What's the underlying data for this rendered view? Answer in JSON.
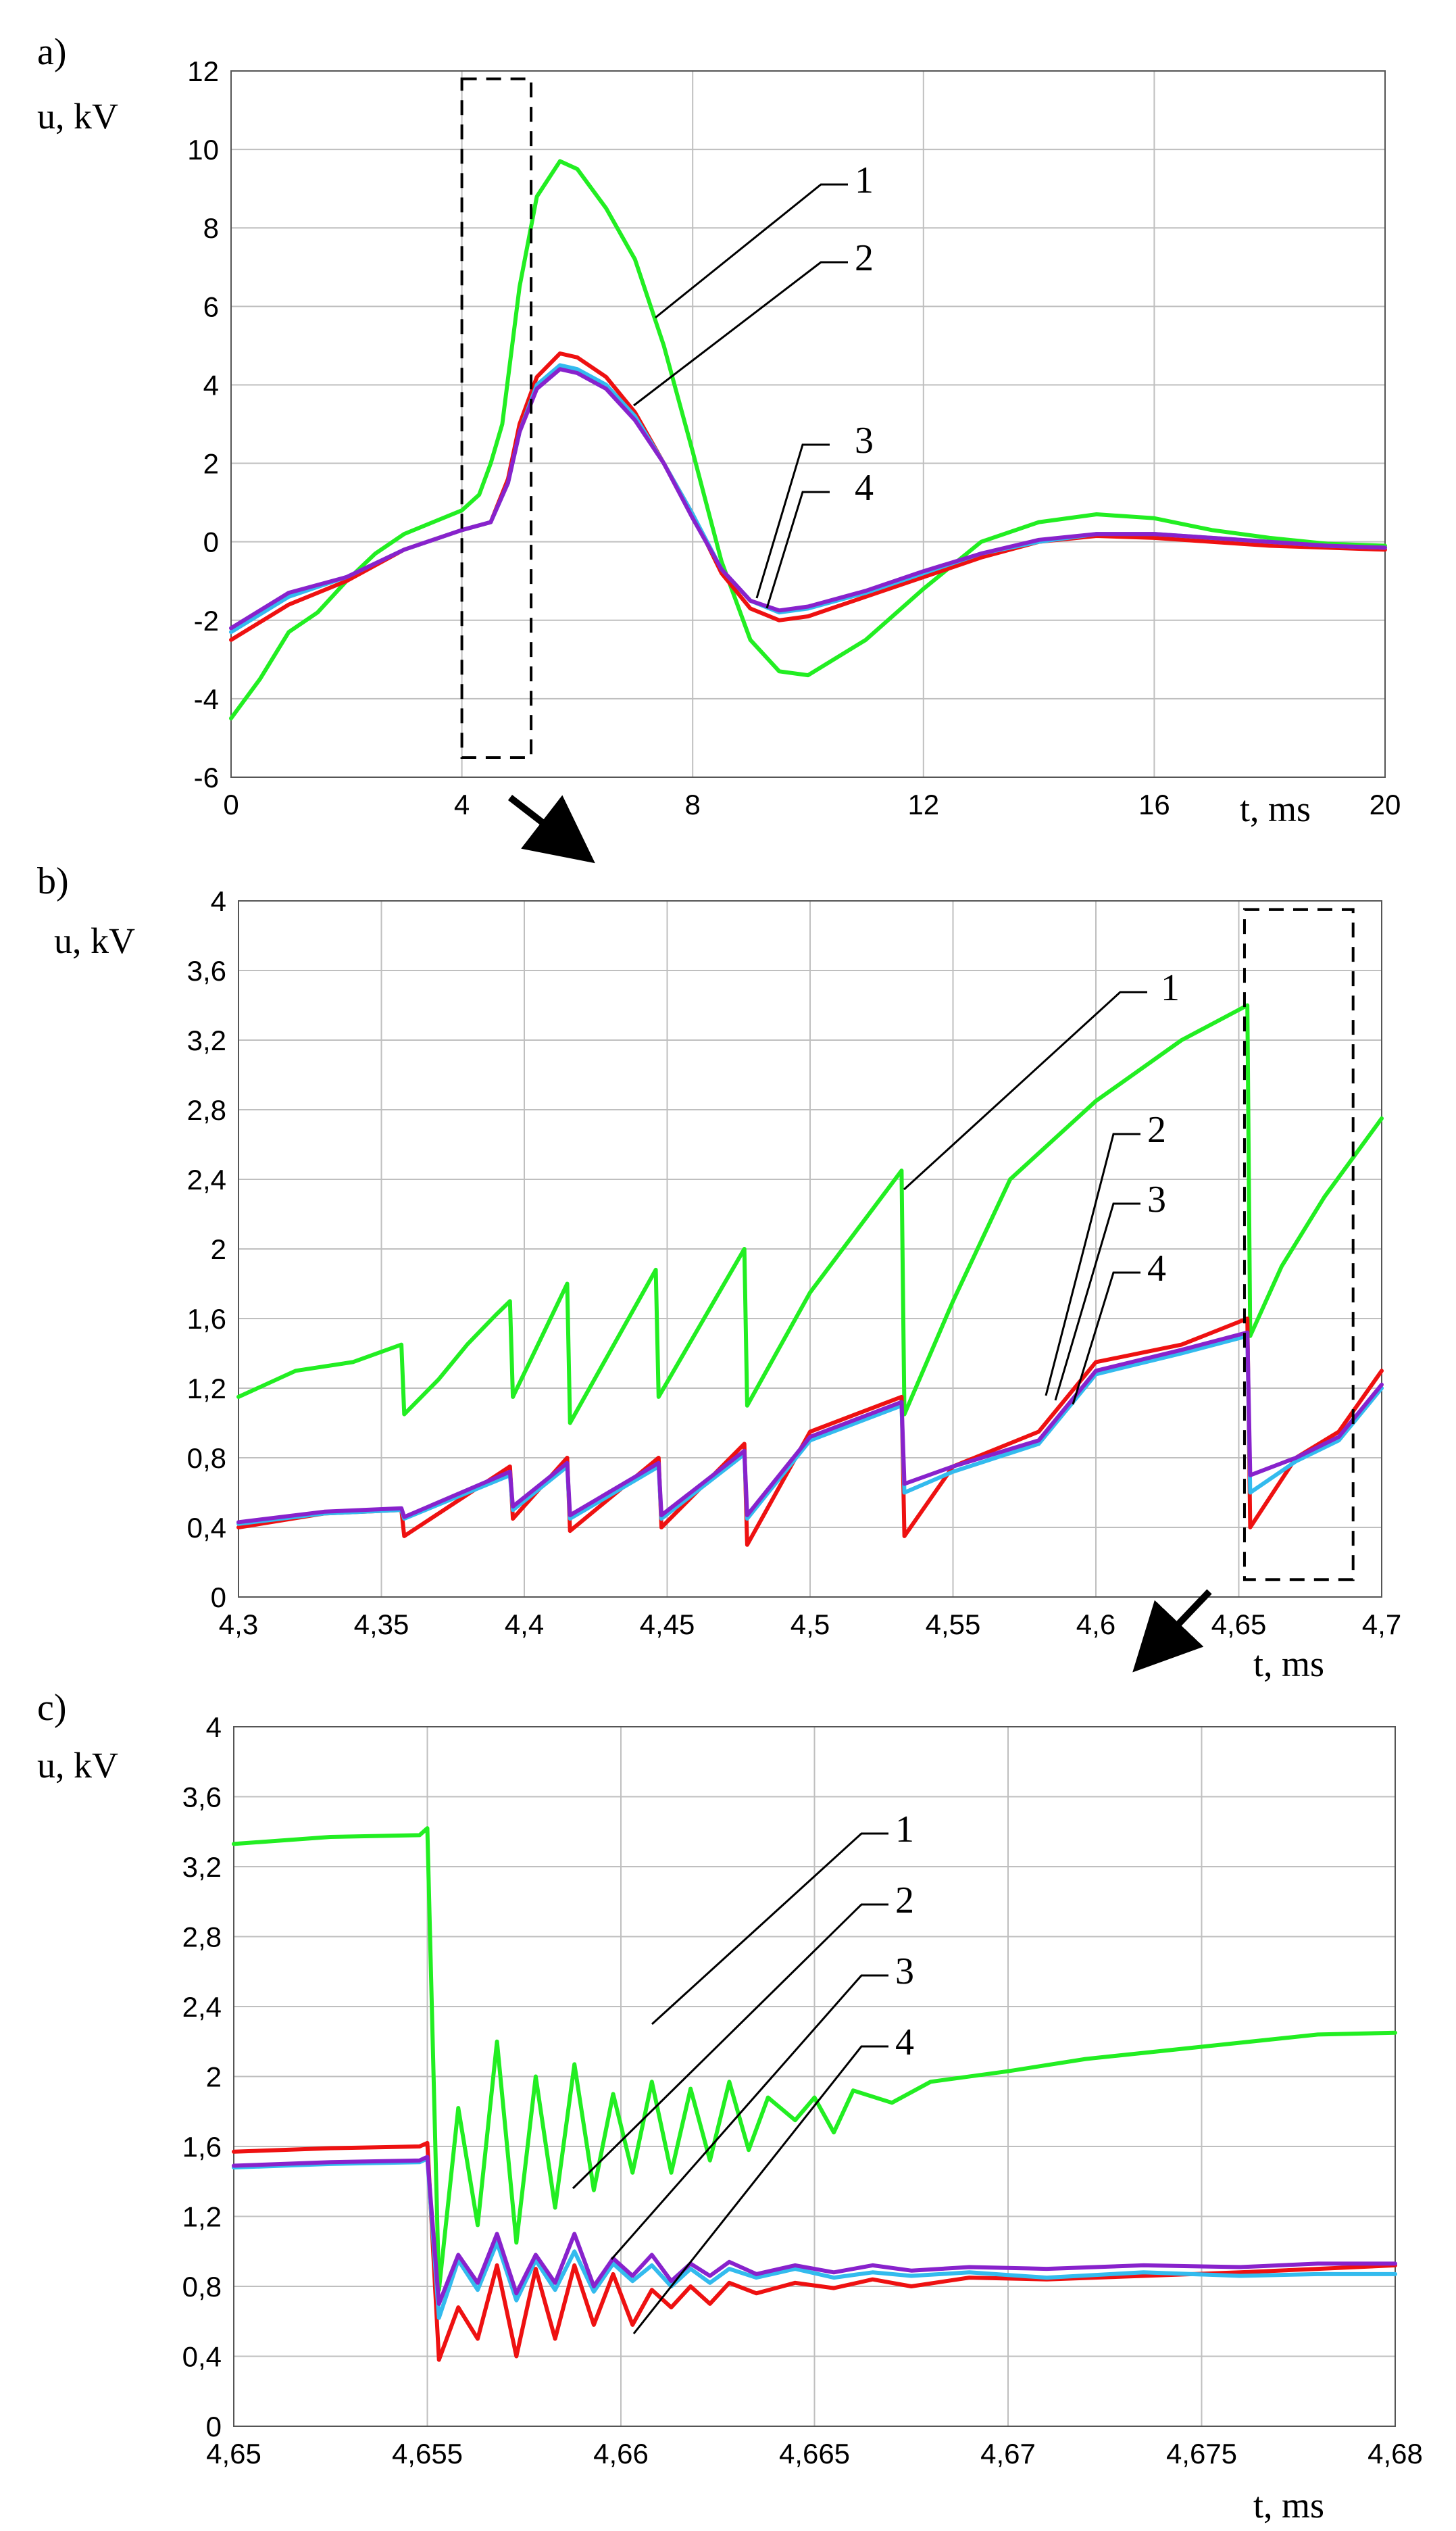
{
  "colors": {
    "curve_1": "#22ee22",
    "curve_2": "#ee1111",
    "curve_3": "#33bbee",
    "curve_4": "#8822cc",
    "grid": "#bfbfbf"
  },
  "chart_data": [
    {
      "panel": "a)",
      "type": "line",
      "ylabel": "u, kV",
      "xlabel": "t, ms",
      "xlim": [
        0,
        20
      ],
      "ylim": [
        -6,
        12
      ],
      "xticks": [
        "0",
        "4",
        "8",
        "12",
        "16",
        "20"
      ],
      "yticks": [
        "-6",
        "-4",
        "-2",
        "0",
        "2",
        "4",
        "6",
        "8",
        "10",
        "12"
      ],
      "curve_labels": [
        "1",
        "2",
        "3",
        "4"
      ],
      "zoom_box": {
        "x": [
          4,
          5.2
        ],
        "y": [
          -5.5,
          11.8
        ]
      },
      "series": [
        {
          "name": "1",
          "x": [
            0,
            0.5,
            1,
            1.5,
            2,
            2.5,
            3,
            3.5,
            4,
            4.3,
            4.5,
            4.7,
            5,
            5.3,
            5.7,
            6,
            6.5,
            7,
            7.5,
            8,
            8.5,
            9,
            9.5,
            10,
            11,
            12,
            13,
            14,
            15,
            16,
            17,
            18,
            19,
            20
          ],
          "y": [
            -4.5,
            -3.5,
            -2.3,
            -1.8,
            -1.0,
            -0.3,
            0.2,
            0.5,
            0.8,
            1.2,
            2.0,
            3.0,
            6.5,
            8.8,
            9.7,
            9.5,
            8.5,
            7.2,
            5.0,
            2.3,
            -0.5,
            -2.5,
            -3.3,
            -3.4,
            -2.5,
            -1.2,
            0.0,
            0.5,
            0.7,
            0.6,
            0.3,
            0.1,
            -0.05,
            -0.1
          ]
        },
        {
          "name": "2",
          "x": [
            0,
            1,
            2,
            3,
            4,
            4.5,
            4.8,
            5,
            5.3,
            5.7,
            6,
            6.5,
            7,
            7.5,
            8,
            8.5,
            9,
            9.5,
            10,
            11,
            12,
            13,
            14,
            15,
            16,
            17,
            18,
            19,
            20
          ],
          "y": [
            -2.5,
            -1.6,
            -1.0,
            -0.2,
            0.3,
            0.5,
            1.6,
            3.0,
            4.2,
            4.8,
            4.7,
            4.2,
            3.3,
            2.0,
            0.7,
            -0.8,
            -1.7,
            -2.0,
            -1.9,
            -1.4,
            -0.9,
            -0.4,
            0.0,
            0.15,
            0.1,
            0.0,
            -0.1,
            -0.15,
            -0.2
          ]
        },
        {
          "name": "3",
          "x": [
            0,
            1,
            2,
            3,
            4,
            4.5,
            4.8,
            5,
            5.3,
            5.7,
            6,
            6.5,
            7,
            7.5,
            8,
            8.5,
            9,
            9.5,
            10,
            11,
            12,
            13,
            14,
            15,
            16,
            17,
            18,
            19,
            20
          ],
          "y": [
            -2.3,
            -1.4,
            -0.9,
            -0.2,
            0.3,
            0.5,
            1.5,
            2.8,
            4.0,
            4.5,
            4.4,
            4.0,
            3.2,
            2.0,
            0.7,
            -0.7,
            -1.5,
            -1.8,
            -1.7,
            -1.3,
            -0.8,
            -0.3,
            0.0,
            0.2,
            0.2,
            0.1,
            0.0,
            -0.1,
            -0.15
          ]
        },
        {
          "name": "4",
          "x": [
            0,
            1,
            2,
            3,
            4,
            4.5,
            4.8,
            5,
            5.3,
            5.7,
            6,
            6.5,
            7,
            7.5,
            8,
            8.5,
            9,
            9.5,
            10,
            11,
            12,
            13,
            14,
            15,
            16,
            17,
            18,
            19,
            20
          ],
          "y": [
            -2.2,
            -1.3,
            -0.9,
            -0.2,
            0.3,
            0.5,
            1.5,
            2.8,
            3.9,
            4.4,
            4.3,
            3.9,
            3.1,
            2.0,
            0.6,
            -0.7,
            -1.5,
            -1.75,
            -1.65,
            -1.25,
            -0.75,
            -0.3,
            0.05,
            0.2,
            0.2,
            0.1,
            0.0,
            -0.1,
            -0.15
          ]
        }
      ]
    },
    {
      "panel": "b)",
      "type": "line",
      "ylabel": "u, kV",
      "xlabel": "t, ms",
      "xlim": [
        4.3,
        4.7
      ],
      "ylim": [
        0,
        4
      ],
      "xticks": [
        "4,3",
        "4,35",
        "4,4",
        "4,45",
        "4,5",
        "4,55",
        "4,6",
        "4,65",
        "4,7"
      ],
      "yticks": [
        "0",
        "0,4",
        "0,8",
        "1,2",
        "1,6",
        "2",
        "2,4",
        "2,8",
        "3,2",
        "3,6",
        "4"
      ],
      "curve_labels": [
        "1",
        "2",
        "3",
        "4"
      ],
      "zoom_box": {
        "x": [
          4.652,
          4.69
        ],
        "y": [
          0.1,
          3.95
        ]
      },
      "series": [
        {
          "name": "1",
          "x": [
            4.3,
            4.32,
            4.34,
            4.357,
            4.358,
            4.37,
            4.38,
            4.39,
            4.395,
            4.396,
            4.415,
            4.416,
            4.446,
            4.447,
            4.477,
            4.478,
            4.5,
            4.532,
            4.533,
            4.55,
            4.57,
            4.6,
            4.63,
            4.653,
            4.654,
            4.665,
            4.68,
            4.7
          ],
          "y": [
            1.15,
            1.3,
            1.35,
            1.45,
            1.05,
            1.25,
            1.45,
            1.62,
            1.7,
            1.15,
            1.8,
            1.0,
            1.88,
            1.15,
            2.0,
            1.1,
            1.75,
            2.45,
            1.05,
            1.7,
            2.4,
            2.85,
            3.2,
            3.4,
            1.5,
            1.9,
            2.3,
            2.75
          ]
        },
        {
          "name": "2",
          "x": [
            4.3,
            4.33,
            4.357,
            4.358,
            4.395,
            4.396,
            4.415,
            4.416,
            4.447,
            4.448,
            4.477,
            4.478,
            4.5,
            4.532,
            4.533,
            4.55,
            4.58,
            4.6,
            4.63,
            4.653,
            4.654,
            4.67,
            4.685,
            4.7
          ],
          "y": [
            0.4,
            0.48,
            0.5,
            0.35,
            0.75,
            0.45,
            0.8,
            0.38,
            0.8,
            0.4,
            0.88,
            0.3,
            0.95,
            1.15,
            0.35,
            0.75,
            0.95,
            1.35,
            1.45,
            1.6,
            0.4,
            0.8,
            0.95,
            1.3
          ]
        },
        {
          "name": "3",
          "x": [
            4.3,
            4.33,
            4.357,
            4.358,
            4.395,
            4.396,
            4.415,
            4.416,
            4.447,
            4.448,
            4.477,
            4.478,
            4.5,
            4.532,
            4.533,
            4.55,
            4.58,
            4.6,
            4.63,
            4.653,
            4.654,
            4.67,
            4.685,
            4.7
          ],
          "y": [
            0.42,
            0.48,
            0.5,
            0.45,
            0.7,
            0.5,
            0.75,
            0.45,
            0.75,
            0.45,
            0.82,
            0.45,
            0.9,
            1.1,
            0.6,
            0.72,
            0.88,
            1.28,
            1.4,
            1.5,
            0.6,
            0.78,
            0.9,
            1.2
          ]
        },
        {
          "name": "4",
          "x": [
            4.3,
            4.33,
            4.357,
            4.358,
            4.395,
            4.396,
            4.415,
            4.416,
            4.447,
            4.448,
            4.477,
            4.478,
            4.5,
            4.532,
            4.533,
            4.55,
            4.58,
            4.6,
            4.63,
            4.653,
            4.654,
            4.67,
            4.685,
            4.7
          ],
          "y": [
            0.43,
            0.49,
            0.51,
            0.46,
            0.72,
            0.52,
            0.77,
            0.47,
            0.77,
            0.47,
            0.84,
            0.47,
            0.92,
            1.12,
            0.65,
            0.75,
            0.9,
            1.3,
            1.42,
            1.52,
            0.7,
            0.8,
            0.92,
            1.22
          ]
        }
      ]
    },
    {
      "panel": "c)",
      "type": "line",
      "ylabel": "u, kV",
      "xlabel": "t, ms",
      "xlim": [
        4.65,
        4.68
      ],
      "ylim": [
        0,
        4
      ],
      "xticks": [
        "4,65",
        "4,655",
        "4,66",
        "4,665",
        "4,67",
        "4,675",
        "4,68"
      ],
      "yticks": [
        "0",
        "0,4",
        "0,8",
        "1,2",
        "1,6",
        "2",
        "2,4",
        "2,8",
        "3,2",
        "3,6",
        "4"
      ],
      "curve_labels": [
        "1",
        "2",
        "3",
        "4"
      ],
      "series": [
        {
          "name": "1",
          "x": [
            4.65,
            4.6525,
            4.6548,
            4.655,
            4.6553,
            4.6558,
            4.6563,
            4.6568,
            4.6573,
            4.6578,
            4.6583,
            4.6588,
            4.6593,
            4.6598,
            4.6603,
            4.6608,
            4.6613,
            4.6618,
            4.6623,
            4.6628,
            4.6633,
            4.6638,
            4.6645,
            4.665,
            4.6655,
            4.666,
            4.667,
            4.668,
            4.67,
            4.672,
            4.675,
            4.678,
            4.68
          ],
          "y": [
            3.33,
            3.37,
            3.38,
            3.42,
            0.78,
            1.82,
            1.15,
            2.2,
            1.05,
            2.0,
            1.25,
            2.07,
            1.35,
            1.9,
            1.45,
            1.97,
            1.45,
            1.93,
            1.52,
            1.97,
            1.58,
            1.88,
            1.75,
            1.88,
            1.68,
            1.92,
            1.85,
            1.97,
            2.03,
            2.1,
            2.17,
            2.24,
            2.25
          ]
        },
        {
          "name": "2",
          "x": [
            4.65,
            4.6525,
            4.6548,
            4.655,
            4.6553,
            4.6558,
            4.6563,
            4.6568,
            4.6573,
            4.6578,
            4.6583,
            4.6588,
            4.6593,
            4.6598,
            4.6603,
            4.6608,
            4.6613,
            4.6618,
            4.6623,
            4.6628,
            4.6635,
            4.6645,
            4.6655,
            4.6665,
            4.6675,
            4.669,
            4.671,
            4.6735,
            4.676,
            4.678,
            4.68
          ],
          "y": [
            1.57,
            1.59,
            1.6,
            1.62,
            0.38,
            0.68,
            0.5,
            0.92,
            0.4,
            0.9,
            0.5,
            0.92,
            0.58,
            0.87,
            0.58,
            0.78,
            0.68,
            0.8,
            0.7,
            0.82,
            0.76,
            0.82,
            0.79,
            0.84,
            0.8,
            0.85,
            0.84,
            0.86,
            0.88,
            0.9,
            0.92
          ]
        },
        {
          "name": "3",
          "x": [
            4.65,
            4.6525,
            4.6548,
            4.655,
            4.6553,
            4.6558,
            4.6563,
            4.6568,
            4.6573,
            4.6578,
            4.6583,
            4.6588,
            4.6593,
            4.6598,
            4.6603,
            4.6608,
            4.6613,
            4.6618,
            4.6623,
            4.6628,
            4.6635,
            4.6645,
            4.6655,
            4.6665,
            4.6675,
            4.669,
            4.671,
            4.6735,
            4.676,
            4.678,
            4.68
          ],
          "y": [
            1.48,
            1.5,
            1.51,
            1.53,
            0.62,
            0.95,
            0.78,
            1.05,
            0.72,
            0.95,
            0.78,
            1.0,
            0.77,
            0.93,
            0.83,
            0.92,
            0.8,
            0.9,
            0.82,
            0.9,
            0.85,
            0.9,
            0.85,
            0.88,
            0.86,
            0.88,
            0.85,
            0.88,
            0.86,
            0.87,
            0.87
          ]
        },
        {
          "name": "4",
          "x": [
            4.65,
            4.6525,
            4.6548,
            4.655,
            4.6553,
            4.6558,
            4.6563,
            4.6568,
            4.6573,
            4.6578,
            4.6583,
            4.6588,
            4.6593,
            4.6598,
            4.6603,
            4.6608,
            4.6613,
            4.6618,
            4.6623,
            4.6628,
            4.6635,
            4.6645,
            4.6655,
            4.6665,
            4.6675,
            4.669,
            4.671,
            4.6735,
            4.676,
            4.678,
            4.68
          ],
          "y": [
            1.49,
            1.51,
            1.52,
            1.54,
            0.7,
            0.98,
            0.82,
            1.1,
            0.76,
            0.98,
            0.82,
            1.1,
            0.8,
            0.96,
            0.86,
            0.98,
            0.83,
            0.93,
            0.86,
            0.94,
            0.87,
            0.92,
            0.88,
            0.92,
            0.89,
            0.91,
            0.9,
            0.92,
            0.91,
            0.93,
            0.93
          ]
        }
      ]
    }
  ]
}
